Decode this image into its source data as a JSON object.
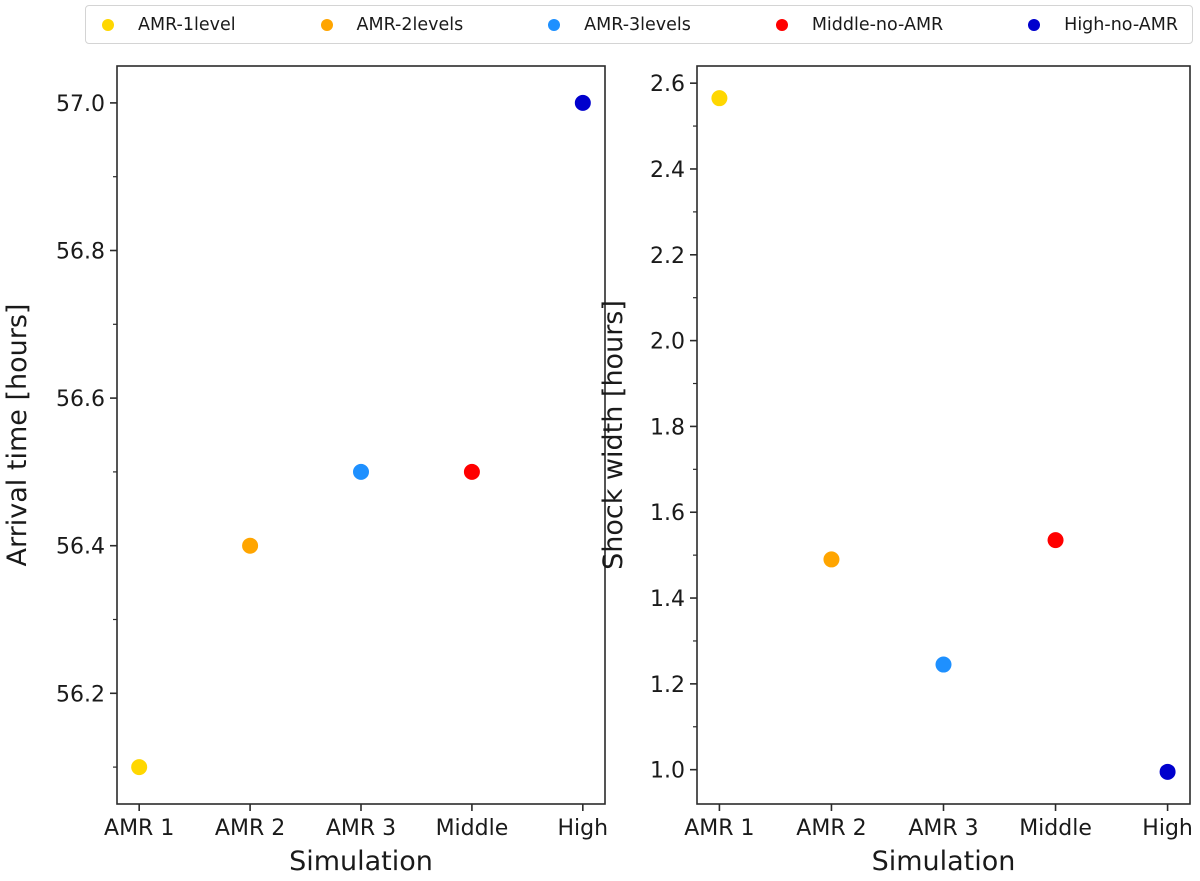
{
  "legend": {
    "items": [
      {
        "label": "AMR-1level",
        "color": "#FFD700"
      },
      {
        "label": "AMR-2levels",
        "color": "#FFA500"
      },
      {
        "label": "AMR-3levels",
        "color": "#1E90FF"
      },
      {
        "label": "Middle-no-AMR",
        "color": "#FF0000"
      },
      {
        "label": "High-no-AMR",
        "color": "#0000CD"
      }
    ]
  },
  "chart_data": [
    {
      "type": "scatter",
      "title": "",
      "xlabel": "Simulation",
      "ylabel": "Arrival time [hours]",
      "categories": [
        "AMR 1",
        "AMR 2",
        "AMR 3",
        "Middle",
        "High"
      ],
      "series": [
        {
          "name": "AMR-1level",
          "color": "#FFD700",
          "points": [
            {
              "x": "AMR 1",
              "y": 56.1
            }
          ]
        },
        {
          "name": "AMR-2levels",
          "color": "#FFA500",
          "points": [
            {
              "x": "AMR 2",
              "y": 56.4
            }
          ]
        },
        {
          "name": "AMR-3levels",
          "color": "#1E90FF",
          "points": [
            {
              "x": "AMR 3",
              "y": 56.5
            }
          ]
        },
        {
          "name": "Middle-no-AMR",
          "color": "#FF0000",
          "points": [
            {
              "x": "Middle",
              "y": 56.5
            }
          ]
        },
        {
          "name": "High-no-AMR",
          "color": "#0000CD",
          "points": [
            {
              "x": "High",
              "y": 57.0
            }
          ]
        }
      ],
      "ylim": [
        56.05,
        57.05
      ],
      "yticks": [
        56.2,
        56.4,
        56.6,
        56.8,
        57.0
      ],
      "ytick_labels": [
        "56.2",
        "56.4",
        "56.6",
        "56.8",
        "57.0"
      ],
      "minor_ytick_step": 0.1,
      "grid": false,
      "legend_position": "top"
    },
    {
      "type": "scatter",
      "title": "",
      "xlabel": "Simulation",
      "ylabel": "Shock width [hours]",
      "categories": [
        "AMR 1",
        "AMR 2",
        "AMR 3",
        "Middle",
        "High"
      ],
      "series": [
        {
          "name": "AMR-1level",
          "color": "#FFD700",
          "points": [
            {
              "x": "AMR 1",
              "y": 2.565
            }
          ]
        },
        {
          "name": "AMR-2levels",
          "color": "#FFA500",
          "points": [
            {
              "x": "AMR 2",
              "y": 1.49
            }
          ]
        },
        {
          "name": "AMR-3levels",
          "color": "#1E90FF",
          "points": [
            {
              "x": "AMR 3",
              "y": 1.245
            }
          ]
        },
        {
          "name": "Middle-no-AMR",
          "color": "#FF0000",
          "points": [
            {
              "x": "Middle",
              "y": 1.535
            }
          ]
        },
        {
          "name": "High-no-AMR",
          "color": "#0000CD",
          "points": [
            {
              "x": "High",
              "y": 0.995
            }
          ]
        }
      ],
      "ylim": [
        0.92,
        2.64
      ],
      "yticks": [
        1.0,
        1.2,
        1.4,
        1.6,
        1.8,
        2.0,
        2.2,
        2.4,
        2.6
      ],
      "ytick_labels": [
        "1.0",
        "1.2",
        "1.4",
        "1.6",
        "1.8",
        "2.0",
        "2.2",
        "2.4",
        "2.6"
      ],
      "minor_ytick_step": 0.1,
      "grid": false,
      "legend_position": "top"
    }
  ]
}
